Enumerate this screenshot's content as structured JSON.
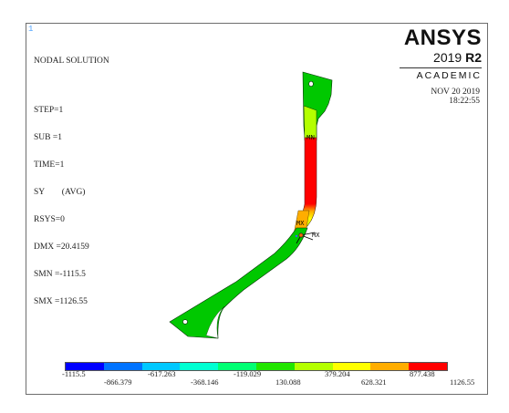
{
  "window": {
    "marker": "1"
  },
  "info": {
    "title": "NODAL SOLUTION",
    "lines": [
      "STEP=1",
      "SUB =1",
      "TIME=1",
      "SY        (AVG)",
      "RSYS=0",
      "DMX =20.4159",
      "SMN =-1115.5",
      "SMX =1126.55"
    ]
  },
  "brand": {
    "name": "ANSYS",
    "version_prefix": "2019 ",
    "version_suffix": "R2",
    "edition": "ACADEMIC"
  },
  "stamp": {
    "date": "NOV 20 2019",
    "time": "18:22:55"
  },
  "labels": {
    "mn": "MN",
    "mx": "MX",
    "mx_b": "MX"
  },
  "legend": {
    "colors": [
      "#0000ff",
      "#0073ff",
      "#00c8ff",
      "#00ffd2",
      "#00ff73",
      "#22e600",
      "#b4ff00",
      "#ffff00",
      "#ffad00",
      "#ff0000"
    ],
    "top_ticks": [
      "-1115.5",
      "-617.263",
      "-119.029",
      "379.204",
      "877.438"
    ],
    "bottom_ticks": [
      "-866.379",
      "-368.146",
      "130.088",
      "628.321",
      "1126.55"
    ]
  }
}
